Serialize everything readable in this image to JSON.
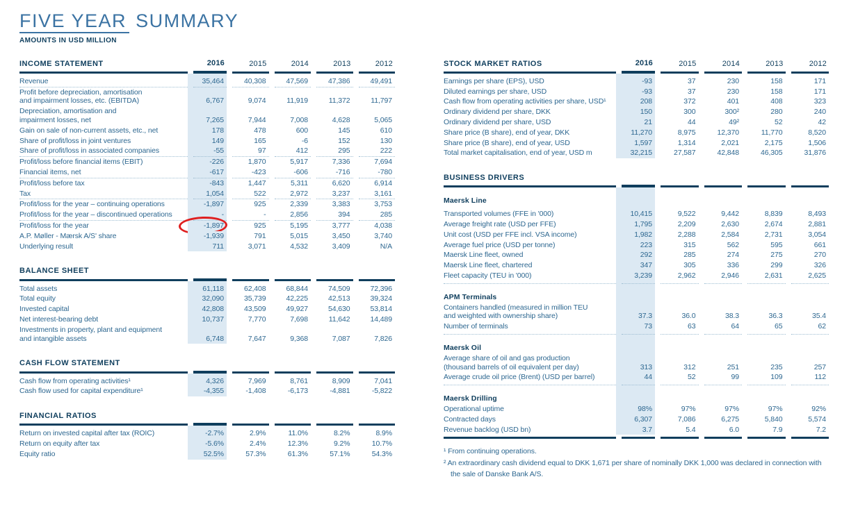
{
  "page": {
    "title": "FIVE YEAR SUMMARY",
    "title_parts": {
      "underlined": "FIVE YEAR",
      "rest": " SUMMARY"
    },
    "subtitle": "AMOUNTS IN USD MILLION"
  },
  "years": [
    "2016",
    "2015",
    "2014",
    "2013",
    "2012"
  ],
  "colors": {
    "navy": "#0f3e5d",
    "body_blue": "#2d6790",
    "title_blue": "#3b73a3",
    "highlight_column": "#dce9f3",
    "dotted_rule": "#9dbdd2",
    "annotation_red": "#df1f1f"
  },
  "annotation": {
    "shape": "red-ellipse",
    "target": "Profit/loss for the year, 2016",
    "circled_value": "-1,897"
  },
  "tables": {
    "income_statement": {
      "header": "INCOME STATEMENT",
      "show_years": true,
      "rows": [
        {
          "label": "Revenue",
          "values": [
            "35,464",
            "40,308",
            "47,569",
            "47,386",
            "49,491"
          ],
          "sep": true
        },
        {
          "label": "Profit before depreciation, amortisation\nand impairment losses, etc. (EBITDA)",
          "values": [
            "6,767",
            "9,074",
            "11,919",
            "11,372",
            "11,797"
          ]
        },
        {
          "label": "Depreciation, amortisation and\nimpairment losses, net",
          "values": [
            "7,265",
            "7,944",
            "7,008",
            "4,628",
            "5,065"
          ]
        },
        {
          "label": "Gain on sale of non-current assets, etc., net",
          "values": [
            "178",
            "478",
            "600",
            "145",
            "610"
          ]
        },
        {
          "label": "Share of profit/loss in joint ventures",
          "values": [
            "149",
            "165",
            "-6",
            "152",
            "130"
          ]
        },
        {
          "label": "Share of profit/loss in associated companies",
          "values": [
            "-55",
            "97",
            "412",
            "295",
            "222"
          ],
          "sep": true
        },
        {
          "label": "Profit/loss before financial items (EBIT)",
          "values": [
            "-226",
            "1,870",
            "5,917",
            "7,336",
            "7,694"
          ]
        },
        {
          "label": "Financial items, net",
          "values": [
            "-617",
            "-423",
            "-606",
            "-716",
            "-780"
          ],
          "sep": true
        },
        {
          "label": "Profit/loss before tax",
          "values": [
            "-843",
            "1,447",
            "5,311",
            "6,620",
            "6,914"
          ]
        },
        {
          "label": "Tax",
          "values": [
            "1,054",
            "522",
            "2,972",
            "3,237",
            "3,161"
          ],
          "sep": true
        },
        {
          "label": "Profit/loss for the year – continuing operations",
          "values": [
            "-1,897",
            "925",
            "2,339",
            "3,383",
            "3,753"
          ]
        },
        {
          "label": "Profit/loss for the year – discontinued operations",
          "values": [
            "-",
            "-",
            "2,856",
            "394",
            "285"
          ],
          "sep": true
        },
        {
          "label": "Profit/loss for the year",
          "values": [
            "-1,897",
            "925",
            "5,195",
            "3,777",
            "4,038"
          ],
          "circle": 0
        },
        {
          "label": "A.P. Møller - Mærsk A/S' share",
          "values": [
            "-1,939",
            "791",
            "5,015",
            "3,450",
            "3,740"
          ]
        },
        {
          "label": "Underlying result",
          "values": [
            "711",
            "3,071",
            "4,532",
            "3,409",
            "N/A"
          ]
        }
      ]
    },
    "balance_sheet": {
      "header": "BALANCE SHEET",
      "show_years": false,
      "rows": [
        {
          "label": "Total assets",
          "values": [
            "61,118",
            "62,408",
            "68,844",
            "74,509",
            "72,396"
          ]
        },
        {
          "label": "Total equity",
          "values": [
            "32,090",
            "35,739",
            "42,225",
            "42,513",
            "39,324"
          ]
        },
        {
          "label": "Invested capital",
          "values": [
            "42,808",
            "43,509",
            "49,927",
            "54,630",
            "53,814"
          ]
        },
        {
          "label": "Net interest-bearing debt",
          "values": [
            "10,737",
            "7,770",
            "7,698",
            "11,642",
            "14,489"
          ]
        },
        {
          "label": "Investments in property, plant and equipment\nand intangible assets",
          "values": [
            "6,748",
            "7,647",
            "9,368",
            "7,087",
            "7,826"
          ]
        }
      ]
    },
    "cash_flow": {
      "header": "CASH FLOW STATEMENT",
      "show_years": false,
      "rows": [
        {
          "label": "Cash flow from operating activities¹",
          "values": [
            "4,326",
            "7,969",
            "8,761",
            "8,909",
            "7,041"
          ]
        },
        {
          "label": "Cash flow used for capital expenditure¹",
          "values": [
            "-4,355",
            "-1,408",
            "-6,173",
            "-4,881",
            "-5,822"
          ]
        }
      ]
    },
    "financial_ratios": {
      "header": "FINANCIAL RATIOS",
      "show_years": false,
      "rows": [
        {
          "label": "Return on invested capital after tax (ROIC)",
          "values": [
            "-2.7%",
            "2.9%",
            "11.0%",
            "8.2%",
            "8.9%"
          ]
        },
        {
          "label": "Return on equity after tax",
          "values": [
            "-5.6%",
            "2.4%",
            "12.3%",
            "9.2%",
            "10.7%"
          ]
        },
        {
          "label": "Equity ratio",
          "values": [
            "52.5%",
            "57.3%",
            "61.3%",
            "57.1%",
            "54.3%"
          ]
        }
      ]
    },
    "stock_market_ratios": {
      "header": "STOCK MARKET RATIOS",
      "show_years": true,
      "rows": [
        {
          "label": "Earnings per share (EPS), USD",
          "values": [
            "-93",
            "37",
            "230",
            "158",
            "171"
          ]
        },
        {
          "label": "Diluted earnings per share, USD",
          "values": [
            "-93",
            "37",
            "230",
            "158",
            "171"
          ]
        },
        {
          "label": "Cash flow from operating activities per share, USD¹",
          "values": [
            "208",
            "372",
            "401",
            "408",
            "323"
          ]
        },
        {
          "label": "Ordinary dividend per share, DKK",
          "values": [
            "150",
            "300",
            "300²",
            "280",
            "240"
          ]
        },
        {
          "label": "Ordinary dividend per share, USD",
          "values": [
            "21",
            "44",
            "49²",
            "52",
            "42"
          ]
        },
        {
          "label": "Share price (B share), end of year, DKK",
          "values": [
            "11,270",
            "8,975",
            "12,370",
            "11,770",
            "8,520"
          ]
        },
        {
          "label": "Share price (B share), end of year, USD",
          "values": [
            "1,597",
            "1,314",
            "2,021",
            "2,175",
            "1,506"
          ]
        },
        {
          "label": "Total market capitalisation, end of year, USD m",
          "values": [
            "32,215",
            "27,587",
            "42,848",
            "46,305",
            "31,876"
          ]
        }
      ]
    },
    "business_drivers": {
      "header": "BUSINESS DRIVERS",
      "show_years": false,
      "bottom_line": true,
      "rows": [
        {
          "sub": "Maersk Line"
        },
        {
          "label": "Transported volumes (FFE in '000)",
          "values": [
            "10,415",
            "9,522",
            "9,442",
            "8,839",
            "8,493"
          ]
        },
        {
          "label": "Average freight rate (USD per FFE)",
          "values": [
            "1,795",
            "2,209",
            "2,630",
            "2,674",
            "2,881"
          ]
        },
        {
          "label": "Unit cost (USD per FFE incl. VSA income)",
          "values": [
            "1,982",
            "2,288",
            "2,584",
            "2,731",
            "3,054"
          ]
        },
        {
          "label": "Average fuel price (USD per tonne)",
          "values": [
            "223",
            "315",
            "562",
            "595",
            "661"
          ]
        },
        {
          "label": "Maersk Line fleet, owned",
          "values": [
            "292",
            "285",
            "274",
            "275",
            "270"
          ]
        },
        {
          "label": "Maersk Line fleet, chartered",
          "values": [
            "347",
            "305",
            "336",
            "299",
            "326"
          ]
        },
        {
          "label": "Fleet capacity (TEU in '000)",
          "values": [
            "3,239",
            "2,962",
            "2,946",
            "2,631",
            "2,625"
          ]
        },
        {
          "dots": true
        },
        {
          "sub": "APM Terminals"
        },
        {
          "label": "Containers handled (measured in million TEU\nand weighted with ownership share)",
          "values": [
            "37.3",
            "36.0",
            "38.3",
            "36.3",
            "35.4"
          ]
        },
        {
          "label": "Number of terminals",
          "values": [
            "73",
            "63",
            "64",
            "65",
            "62"
          ]
        },
        {
          "dots": true
        },
        {
          "sub": "Maersk Oil"
        },
        {
          "label": "Average share of oil and gas production\n(thousand barrels of oil equivalent per day)",
          "values": [
            "313",
            "312",
            "251",
            "235",
            "257"
          ]
        },
        {
          "label": "Average crude oil price (Brent) (USD per barrel)",
          "values": [
            "44",
            "52",
            "99",
            "109",
            "112"
          ]
        },
        {
          "dots": true
        },
        {
          "sub": "Maersk Drilling"
        },
        {
          "label": "Operational uptime",
          "values": [
            "98%",
            "97%",
            "97%",
            "97%",
            "92%"
          ]
        },
        {
          "label": "Contracted days",
          "values": [
            "6,307",
            "7,086",
            "6,275",
            "5,840",
            "5,574"
          ]
        },
        {
          "label": "Revenue backlog (USD bn)",
          "values": [
            "3.7",
            "5.4",
            "6.0",
            "7.9",
            "7.2"
          ]
        }
      ]
    }
  },
  "footnotes": [
    "¹ From continuing operations.",
    "² An extraordinary cash dividend equal to DKK 1,671 per share of nominally DKK 1,000 was declared in connection with the sale of Danske Bank A/S."
  ]
}
